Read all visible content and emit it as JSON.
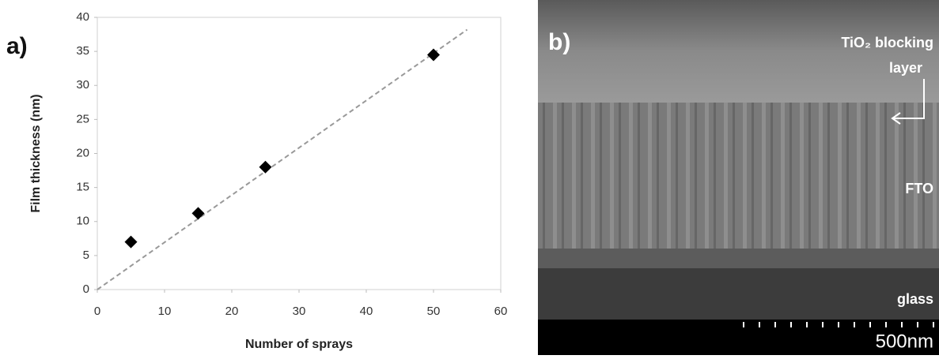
{
  "chart_data": {
    "type": "scatter",
    "panel_label": "a)",
    "x_label": "Number of sprays",
    "y_label": "Film thickness (nm)",
    "x": [
      5,
      15,
      25,
      50
    ],
    "values": [
      7,
      11.2,
      18,
      34.5
    ],
    "color": "#000000",
    "trendline": {
      "x": [
        0,
        55
      ],
      "y": [
        0,
        38.2
      ],
      "color": "#999999"
    },
    "xlim": [
      0,
      60
    ],
    "xticks": [
      0,
      10,
      20,
      30,
      40,
      50,
      60
    ],
    "ylim": [
      0,
      40
    ],
    "yticks": [
      0,
      5,
      10,
      15,
      20,
      25,
      30,
      35,
      40
    ]
  },
  "panel_b": {
    "label": "b)",
    "layer_label": [
      "TiO₂ blocking",
      "layer"
    ],
    "fto_label": "FTO",
    "glass_label": "glass",
    "scale_bar": "500nm"
  }
}
